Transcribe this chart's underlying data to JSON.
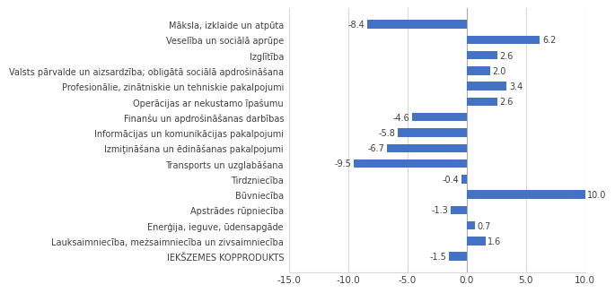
{
  "categories": [
    "Māksla, izklaide un atpūta",
    "Veselība un sociālā aprūpe",
    "Izglītība",
    "Valsts pārvalde un aizsardzība; obligātā sociālā apdrošināšana",
    "Profesionālie, zinātniskie un tehniskie pakalpojumi",
    "Operācijas ar nekustamo īpašumu",
    "Finanšu un apdrošināšanas darbības",
    "Informācijas un komunikācijas pakalpojumi",
    "Izmiţināšana un ēdināšanas pakalpojumi",
    "Transports un uzglabāšana",
    "Tirdzniecība",
    "Būvniecība",
    "Apstrādes rūpniecība",
    "Enerģija, ieguve, ūdensapgāde",
    "Lauksaimniecība, meżsaimniecība un zivsaimniecība",
    "IEKŠZEMES KOPPRODUKTS"
  ],
  "values": [
    -8.4,
    6.2,
    2.6,
    2.0,
    3.4,
    2.6,
    -4.6,
    -5.8,
    -6.7,
    -9.5,
    -0.4,
    10.0,
    -1.3,
    0.7,
    1.6,
    -1.5
  ],
  "bar_color": "#4472C4",
  "xlim": [
    -15.0,
    10.0
  ],
  "xticks": [
    -15.0,
    -10.0,
    -5.0,
    0.0,
    5.0,
    10.0
  ],
  "xtick_labels": [
    "-15.0",
    "-10.0",
    "-5.0",
    "0.0",
    "5.0",
    "10.0"
  ],
  "value_fontsize": 7,
  "label_fontsize": 7,
  "tick_fontsize": 7.5,
  "background_color": "#ffffff",
  "grid_color": "#d9d9d9",
  "bar_height": 0.55
}
